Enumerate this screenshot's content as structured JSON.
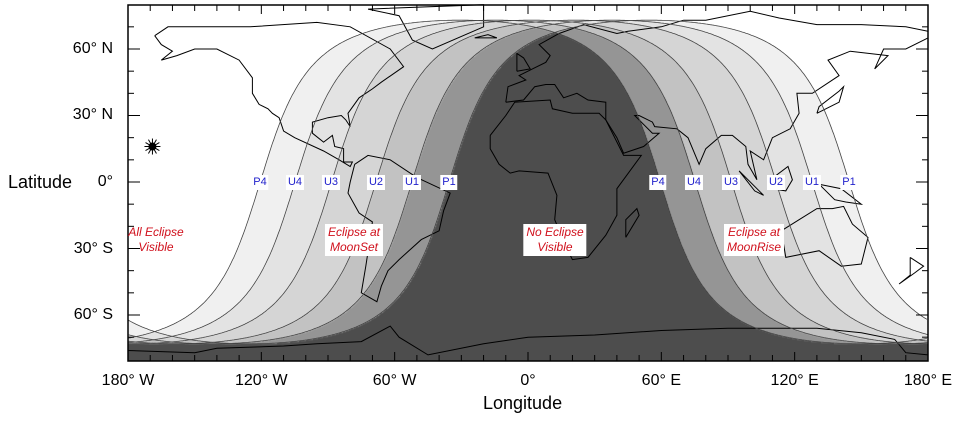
{
  "axes": {
    "y_title": "Latitude",
    "x_title": "Longitude",
    "y_ticks": [
      {
        "lat": 60,
        "label": "60° N"
      },
      {
        "lat": 30,
        "label": "30° N"
      },
      {
        "lat": 0,
        "label": "0°"
      },
      {
        "lat": -30,
        "label": "30° S"
      },
      {
        "lat": -60,
        "label": "60° S"
      }
    ],
    "x_ticks": [
      {
        "lon": -180,
        "label": "180° W"
      },
      {
        "lon": -120,
        "label": "120° W"
      },
      {
        "lon": -60,
        "label": "60° W"
      },
      {
        "lon": 0,
        "label": "0°"
      },
      {
        "lon": 60,
        "label": "60° E"
      },
      {
        "lon": 120,
        "label": "120° E"
      },
      {
        "lon": 180,
        "label": "180° E"
      }
    ],
    "lat_range": [
      -80,
      80
    ],
    "lon_range": [
      -180,
      180
    ]
  },
  "contacts": [
    "P4",
    "U4",
    "U3",
    "U2",
    "U1",
    "P1"
  ],
  "moonset_labels": [
    "P4",
    "U4",
    "U3",
    "U2",
    "U1",
    "P1"
  ],
  "moonrise_labels": [
    "P4",
    "U4",
    "U3",
    "U2",
    "U1",
    "P1"
  ],
  "zones": {
    "all_visible": [
      "All Eclipse",
      "Visible"
    ],
    "moonset": [
      "Eclipse at",
      "MoonSet"
    ],
    "none_visible": [
      "No Eclipse",
      "Visible"
    ],
    "moonrise": [
      "Eclipse at",
      "MoonRise"
    ]
  },
  "colors": {
    "contact_label": "#2222cc",
    "zone_label": "#d0101c",
    "shade_levels": [
      "#ffffff",
      "#f0f0f0",
      "#e3e3e3",
      "#d5d5d5",
      "#c2c2c2",
      "#959595",
      "#4d4d4d"
    ]
  },
  "marker": {
    "icon": "sublunar-point-star-icon"
  }
}
